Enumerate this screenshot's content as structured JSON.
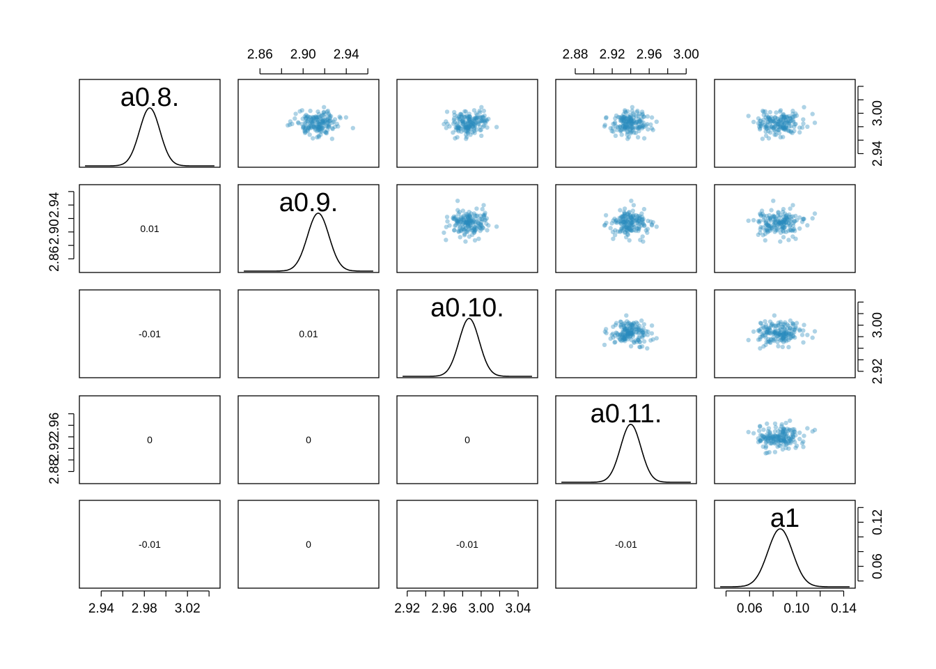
{
  "chart_data": {
    "type": "scatter",
    "variables": [
      "a0.8.",
      "a0.9.",
      "a0.10.",
      "a0.11.",
      "a1"
    ],
    "layout": "pairs matrix: diagonal = posterior density curve with variable name, upper = scatter plots, lower = correlation values",
    "axes": [
      {
        "variable": "a0.8.",
        "range": [
          2.925,
          3.045
        ],
        "tick_values": [
          2.94,
          2.96,
          2.98,
          3.0,
          3.02,
          3.04
        ],
        "tick_labels": [
          "2.94",
          "2.98",
          "3.02"
        ],
        "label_at": [
          2.94,
          2.98,
          3.02
        ]
      },
      {
        "variable": "a0.9.",
        "range": [
          2.845,
          2.965
        ],
        "tick_values": [
          2.86,
          2.88,
          2.9,
          2.92,
          2.94,
          2.96
        ],
        "tick_labels": [
          "2.86",
          "2.90",
          "2.94"
        ],
        "label_at": [
          2.86,
          2.9,
          2.94
        ]
      },
      {
        "variable": "a0.10.",
        "range": [
          2.915,
          3.055
        ],
        "tick_values": [
          2.92,
          2.94,
          2.96,
          2.98,
          3.0,
          3.02,
          3.04
        ],
        "tick_labels": [
          "2.92",
          "2.96",
          "3.00",
          "3.04"
        ],
        "label_at": [
          2.92,
          2.96,
          3.0,
          3.04
        ]
      },
      {
        "variable": "a0.11.",
        "range": [
          2.865,
          3.005
        ],
        "tick_values": [
          2.88,
          2.9,
          2.92,
          2.94,
          2.96,
          2.98,
          3.0
        ],
        "tick_labels": [
          "2.88",
          "2.92",
          "2.96",
          "3.00"
        ],
        "label_at": [
          2.88,
          2.92,
          2.96,
          3.0
        ]
      },
      {
        "variable": "a1",
        "range": [
          0.035,
          0.145
        ],
        "tick_values": [
          0.04,
          0.06,
          0.08,
          0.1,
          0.12,
          0.14
        ],
        "tick_labels": [
          "0.06",
          "0.10",
          "0.14"
        ],
        "label_at": [
          0.06,
          0.1,
          0.14
        ]
      }
    ],
    "left_axes": [
      {
        "row": 1,
        "variable": "a0.9.",
        "tick_values": [
          2.86,
          2.88,
          2.9,
          2.92,
          2.94,
          2.96
        ],
        "tick_labels": [
          "2.86",
          "2.90",
          "2.94"
        ],
        "label_at": [
          2.86,
          2.9,
          2.94
        ]
      },
      {
        "row": 3,
        "variable": "a0.11.",
        "tick_values": [
          2.88,
          2.9,
          2.92,
          2.94,
          2.96,
          2.98
        ],
        "tick_labels": [
          "2.88",
          "2.92",
          "2.96"
        ],
        "label_at": [
          2.88,
          2.92,
          2.96
        ]
      }
    ],
    "right_axes": [
      {
        "row": 0,
        "variable": "a0.8.",
        "tick_values": [
          2.94,
          2.96,
          2.98,
          3.0,
          3.02,
          3.04
        ],
        "tick_labels": [
          "2.94",
          "3.00"
        ],
        "label_at": [
          2.94,
          3.0
        ]
      },
      {
        "row": 2,
        "variable": "a0.10.",
        "tick_values": [
          2.92,
          2.94,
          2.96,
          2.98,
          3.0,
          3.02,
          3.04
        ],
        "tick_labels": [
          "2.92",
          "3.00"
        ],
        "label_at": [
          2.92,
          3.0
        ]
      },
      {
        "row": 4,
        "variable": "a1",
        "tick_values": [
          0.04,
          0.06,
          0.08,
          0.1,
          0.12,
          0.14
        ],
        "tick_labels": [
          "0.06",
          "0.12"
        ],
        "label_at": [
          0.06,
          0.12
        ]
      }
    ],
    "posterior": {
      "a0.8.": {
        "mean": 2.985,
        "sd": 0.0095
      },
      "a0.9.": {
        "mean": 2.914,
        "sd": 0.01
      },
      "a0.10.": {
        "mean": 2.987,
        "sd": 0.011
      },
      "a0.11.": {
        "mean": 2.94,
        "sd": 0.011
      },
      "a1": {
        "mean": 0.086,
        "sd": 0.0105
      }
    },
    "correlations": [
      {
        "row": 1,
        "col": 0,
        "value": "0.01"
      },
      {
        "row": 2,
        "col": 0,
        "value": "-0.01"
      },
      {
        "row": 2,
        "col": 1,
        "value": "0.01"
      },
      {
        "row": 3,
        "col": 0,
        "value": "0"
      },
      {
        "row": 3,
        "col": 1,
        "value": "0"
      },
      {
        "row": 3,
        "col": 2,
        "value": "0"
      },
      {
        "row": 4,
        "col": 0,
        "value": "-0.01"
      },
      {
        "row": 4,
        "col": 1,
        "value": "0"
      },
      {
        "row": 4,
        "col": 2,
        "value": "-0.01"
      },
      {
        "row": 4,
        "col": 3,
        "value": "-0.01"
      }
    ],
    "n_points": 170,
    "point_color": "#2b8cbe",
    "point_color_light": "#a6cde4",
    "point_color_dark": "#08519c",
    "curve_color": "#000000",
    "frame_color": "#000000"
  }
}
